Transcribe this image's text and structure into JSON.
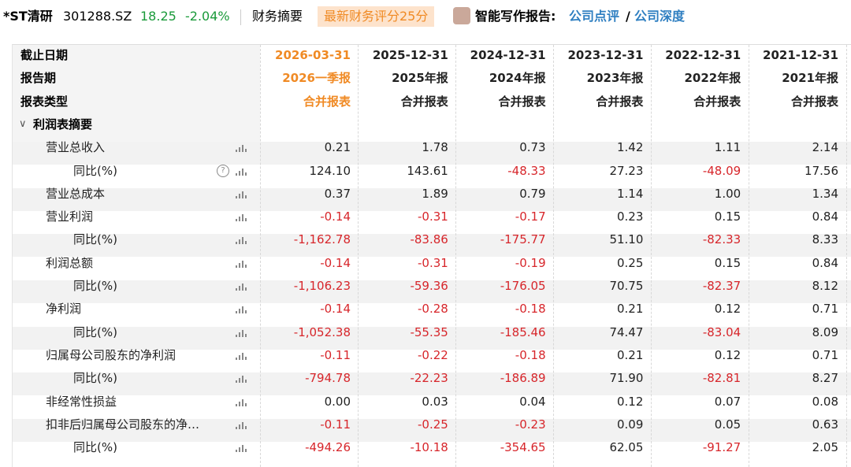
{
  "header": {
    "name": "*ST清研",
    "code": "301288.SZ",
    "price": "18.25",
    "change": "-2.04%",
    "tab": "财务摘要",
    "badge": "最新财务评分25分",
    "report_label": "智能写作报告:",
    "links": [
      "公司点评",
      "公司深度"
    ],
    "link_separator": "/"
  },
  "table": {
    "header_rows": [
      {
        "label": "截止日期",
        "cells": [
          "2026-03-31",
          "2025-12-31",
          "2024-12-31",
          "2023-12-31",
          "2022-12-31",
          "2021-12-31"
        ]
      },
      {
        "label": "报告期",
        "cells": [
          "2026一季报",
          "2025年报",
          "2024年报",
          "2023年报",
          "2022年报",
          "2021年报"
        ]
      },
      {
        "label": "报表类型",
        "cells": [
          "合并报表",
          "合并报表",
          "合并报表",
          "合并报表",
          "合并报表",
          "合并报表"
        ]
      }
    ],
    "section": "利润表摘要",
    "rows": [
      {
        "label": "营业总收入",
        "indent": 1,
        "cells": [
          "0.21",
          "1.78",
          "0.73",
          "1.42",
          "1.11",
          "2.14"
        ]
      },
      {
        "label": "同比(%)",
        "indent": 2,
        "cells": [
          "124.10",
          "143.61",
          "-48.33",
          "27.23",
          "-48.09",
          "17.56"
        ]
      },
      {
        "label": "营业总成本",
        "indent": 1,
        "cells": [
          "0.37",
          "1.89",
          "0.79",
          "1.14",
          "1.00",
          "1.34"
        ]
      },
      {
        "label": "营业利润",
        "indent": 1,
        "cells": [
          "-0.14",
          "-0.31",
          "-0.17",
          "0.23",
          "0.15",
          "0.84"
        ]
      },
      {
        "label": "同比(%)",
        "indent": 2,
        "cells": [
          "-1,162.78",
          "-83.86",
          "-175.77",
          "51.10",
          "-82.33",
          "8.33"
        ]
      },
      {
        "label": "利润总额",
        "indent": 1,
        "cells": [
          "-0.14",
          "-0.31",
          "-0.19",
          "0.25",
          "0.15",
          "0.84"
        ]
      },
      {
        "label": "同比(%)",
        "indent": 2,
        "cells": [
          "-1,106.23",
          "-59.36",
          "-176.05",
          "70.75",
          "-82.37",
          "8.12"
        ]
      },
      {
        "label": "净利润",
        "indent": 1,
        "cells": [
          "-0.14",
          "-0.28",
          "-0.18",
          "0.21",
          "0.12",
          "0.71"
        ]
      },
      {
        "label": "同比(%)",
        "indent": 2,
        "cells": [
          "-1,052.38",
          "-55.35",
          "-185.46",
          "74.47",
          "-83.04",
          "8.09"
        ]
      },
      {
        "label": "归属母公司股东的净利润",
        "indent": 1,
        "cells": [
          "-0.11",
          "-0.22",
          "-0.18",
          "0.21",
          "0.12",
          "0.71"
        ]
      },
      {
        "label": "同比(%)",
        "indent": 2,
        "cells": [
          "-794.78",
          "-22.23",
          "-186.89",
          "71.90",
          "-82.81",
          "8.27"
        ]
      },
      {
        "label": "非经常性损益",
        "indent": 1,
        "cells": [
          "0.00",
          "0.03",
          "0.04",
          "0.12",
          "0.07",
          "0.08"
        ]
      },
      {
        "label": "扣非后归属母公司股东的净…",
        "indent": 1,
        "cells": [
          "-0.11",
          "-0.25",
          "-0.23",
          "0.09",
          "0.05",
          "0.63"
        ]
      },
      {
        "label": "同比(%)",
        "indent": 2,
        "cells": [
          "-494.26",
          "-10.18",
          "-354.65",
          "62.05",
          "-91.27",
          "2.05"
        ]
      }
    ]
  }
}
